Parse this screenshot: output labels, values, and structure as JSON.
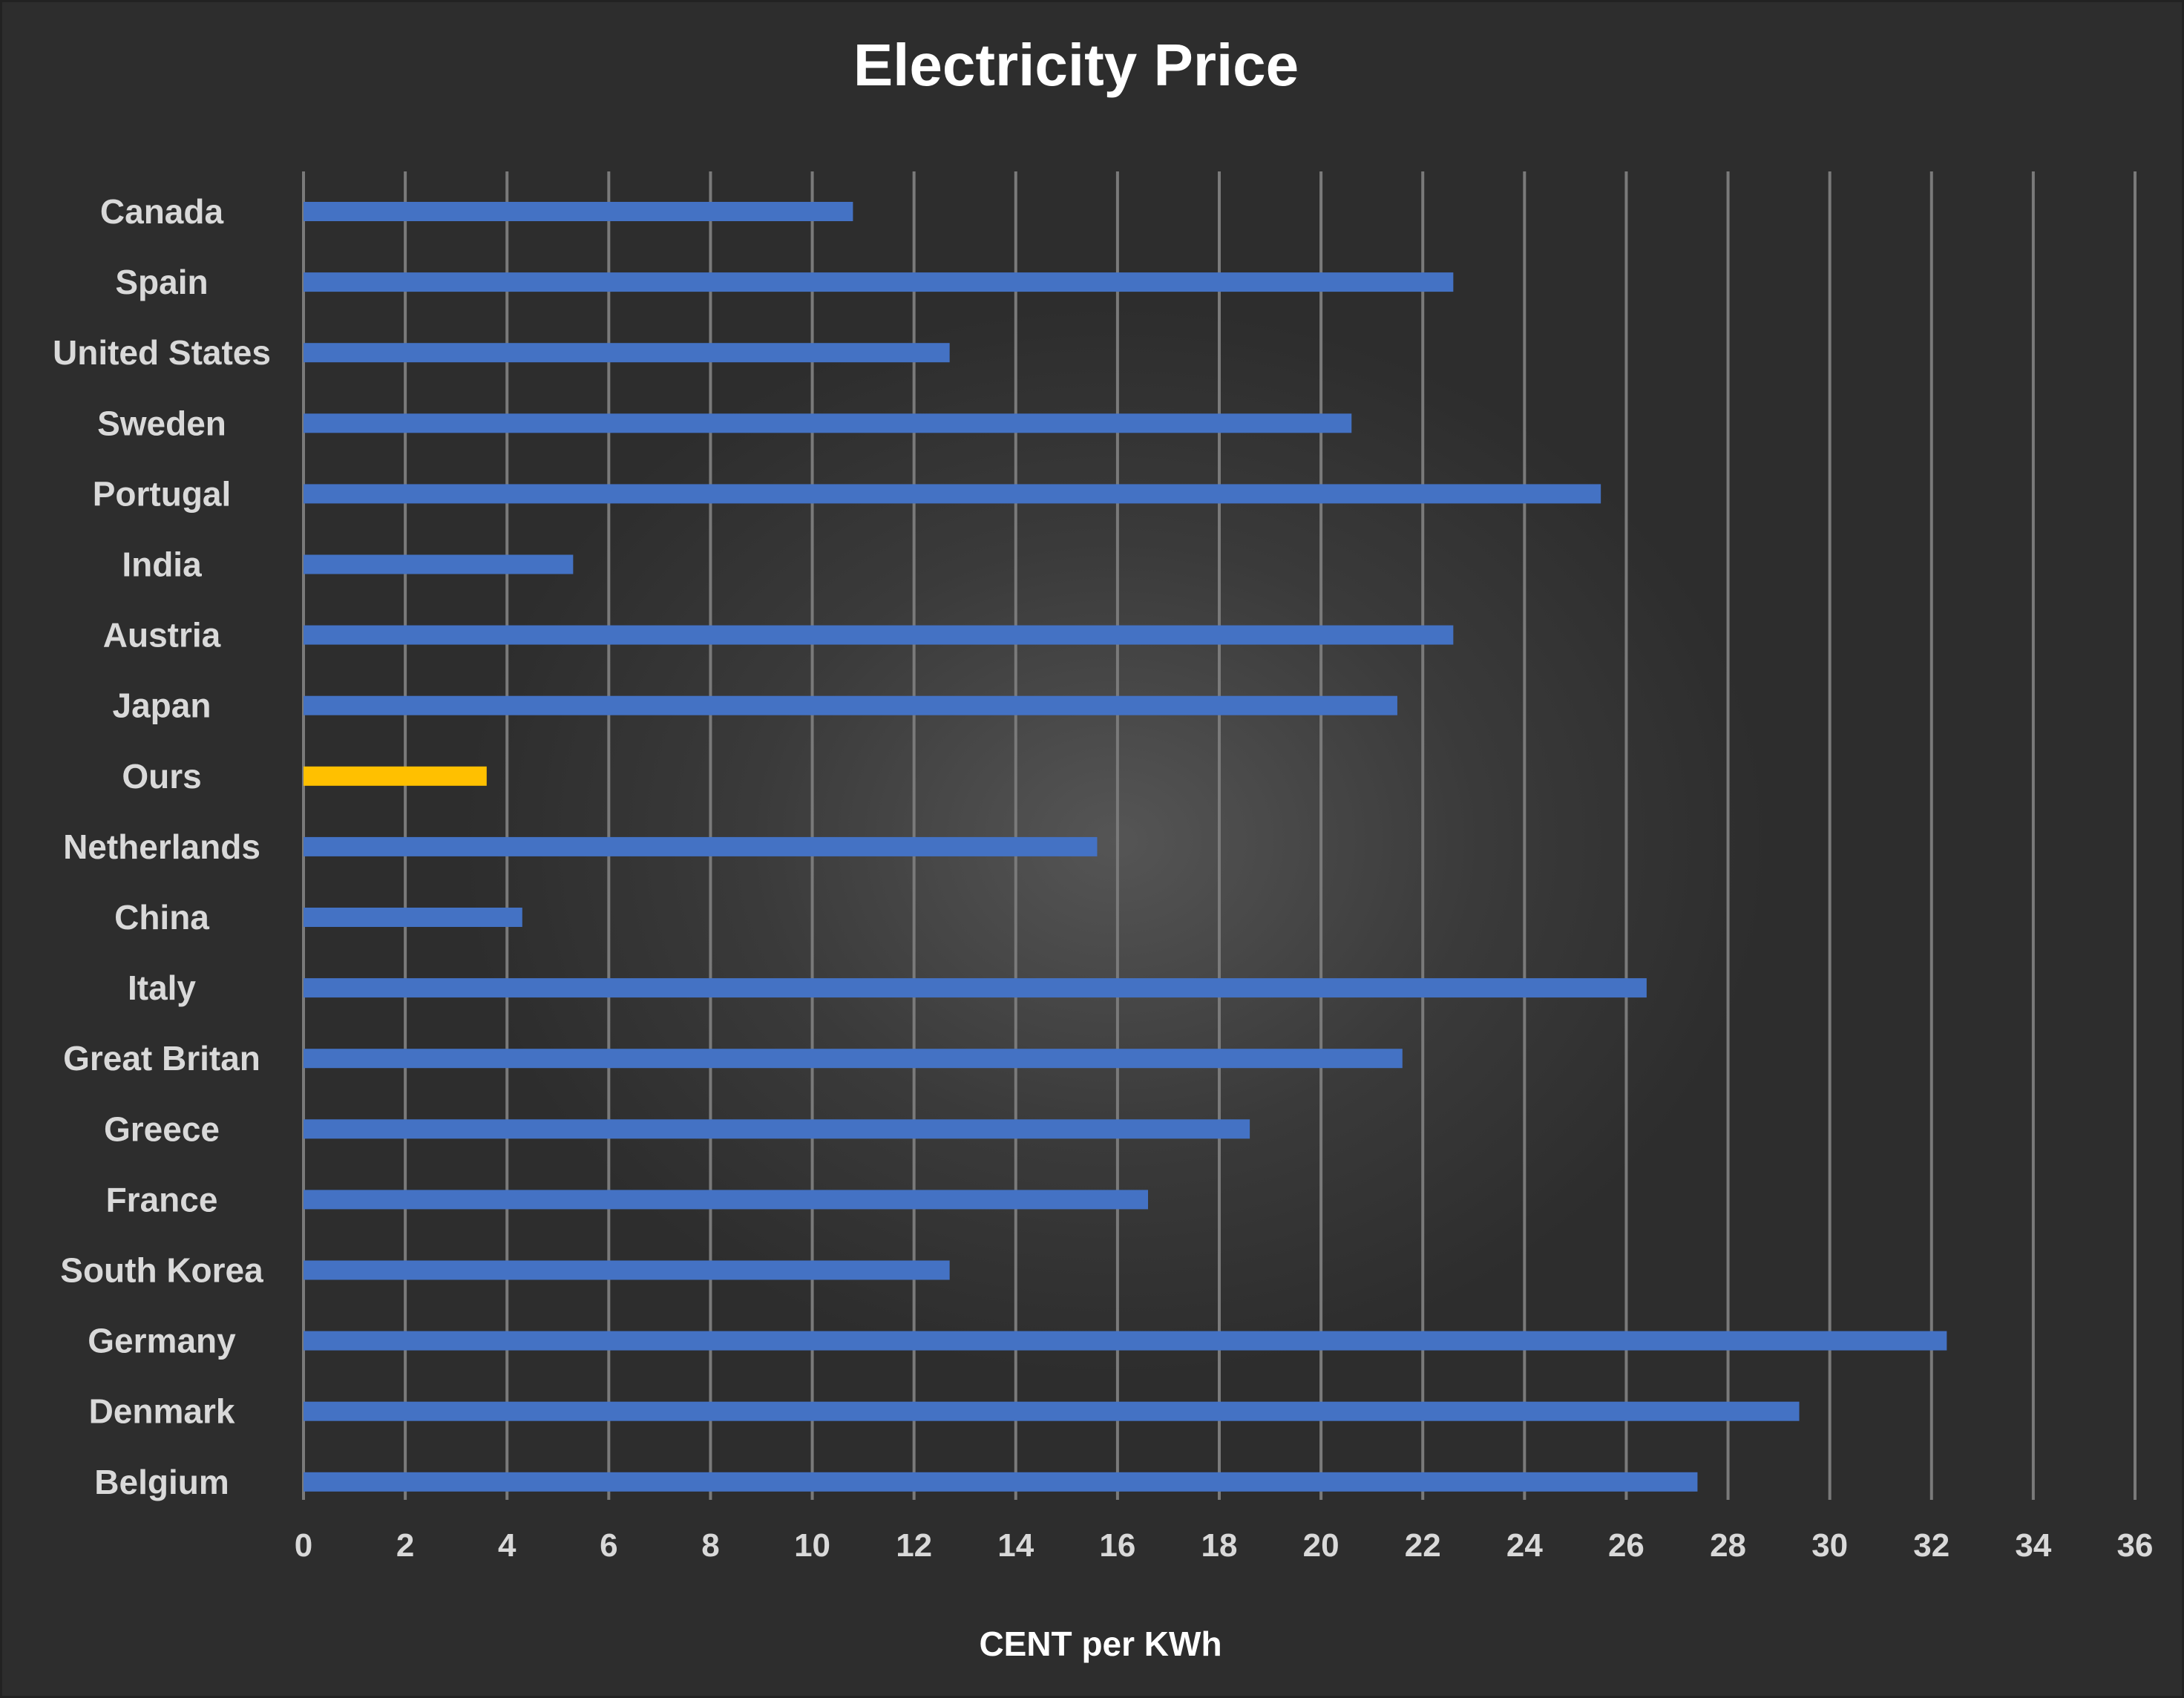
{
  "chart_data": {
    "type": "bar",
    "orientation": "horizontal",
    "title": "Electricity Price",
    "xlabel": "CENT per KWh",
    "ylabel": "",
    "xlim": [
      0,
      36
    ],
    "x_ticks": [
      0,
      2,
      4,
      6,
      8,
      10,
      12,
      14,
      16,
      18,
      20,
      22,
      24,
      26,
      28,
      30,
      32,
      34,
      36
    ],
    "grid": true,
    "categories": [
      "Canada",
      "Spain",
      "United States",
      "Sweden",
      "Portugal",
      "India",
      "Austria",
      "Japan",
      "Ours",
      "Netherlands",
      "China",
      "Italy",
      "Great Britan",
      "Greece",
      "France",
      "South Korea",
      "Germany",
      "Denmark",
      "Belgium"
    ],
    "values": [
      10.8,
      22.6,
      12.7,
      20.6,
      25.5,
      5.3,
      22.6,
      21.5,
      3.6,
      15.6,
      4.3,
      26.4,
      21.6,
      18.6,
      16.6,
      12.7,
      32.3,
      29.4,
      27.4
    ],
    "colors": {
      "default": "#4472c4",
      "highlight": "#ffc000",
      "highlight_category": "Ours",
      "gridline": "#7a7a7a",
      "text": "#d9d9d9",
      "title": "#ffffff"
    }
  }
}
